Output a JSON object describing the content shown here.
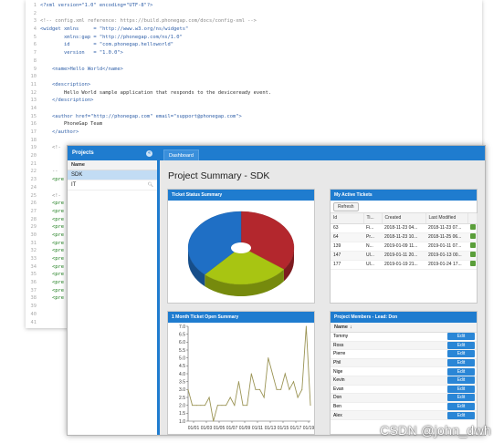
{
  "editor": {
    "lines": [
      {
        "n": "1",
        "t": "<?xml version=\"1.0\" encoding=\"UTF-8\"?>",
        "k": "tag"
      },
      {
        "n": "2",
        "t": "",
        "k": "code"
      },
      {
        "n": "3",
        "t": "<!-- config.xml reference: https://build.phonegap.com/docs/config-xml -->",
        "k": "com"
      },
      {
        "n": "4",
        "t": "<widget xmlns     = \"http://www.w3.org/ns/widgets\"",
        "k": "tag"
      },
      {
        "n": "5",
        "t": "        xmlns:gap = \"http://phonegap.com/ns/1.0\"",
        "k": "tag"
      },
      {
        "n": "6",
        "t": "        id        = \"com.phonegap.helloworld\"",
        "k": "tag"
      },
      {
        "n": "7",
        "t": "        version   = \"1.0.0\">",
        "k": "tag"
      },
      {
        "n": "8",
        "t": "",
        "k": "code"
      },
      {
        "n": "9",
        "t": "    <name>Hello World</name>",
        "k": "tag"
      },
      {
        "n": "10",
        "t": "",
        "k": "code"
      },
      {
        "n": "11",
        "t": "    <description>",
        "k": "tag"
      },
      {
        "n": "12",
        "t": "        Hello World sample application that responds to the deviceready event.",
        "k": "code"
      },
      {
        "n": "13",
        "t": "    </description>",
        "k": "tag"
      },
      {
        "n": "14",
        "t": "",
        "k": "code"
      },
      {
        "n": "15",
        "t": "    <author href=\"http://phonegap.com\" email=\"support@phonegap.com\">",
        "k": "tag"
      },
      {
        "n": "16",
        "t": "        PhoneGap Team",
        "k": "code"
      },
      {
        "n": "17",
        "t": "    </author>",
        "k": "tag"
      },
      {
        "n": "18",
        "t": "",
        "k": "code"
      },
      {
        "n": "19",
        "t": "    <!-",
        "k": "com"
      },
      {
        "n": "20",
        "t": "",
        "k": "code"
      },
      {
        "n": "21",
        "t": "",
        "k": "code"
      },
      {
        "n": "22",
        "t": "    --",
        "k": "com"
      },
      {
        "n": "23",
        "t": "    <pre",
        "k": "gt"
      },
      {
        "n": "24",
        "t": "",
        "k": "code"
      },
      {
        "n": "25",
        "t": "    <!-",
        "k": "com"
      },
      {
        "n": "26",
        "t": "    <pre",
        "k": "gt"
      },
      {
        "n": "27",
        "t": "    <pre",
        "k": "gt"
      },
      {
        "n": "28",
        "t": "    <pre",
        "k": "gt"
      },
      {
        "n": "29",
        "t": "    <pre",
        "k": "gt"
      },
      {
        "n": "30",
        "t": "    <pre",
        "k": "gt"
      },
      {
        "n": "31",
        "t": "    <pre",
        "k": "gt"
      },
      {
        "n": "32",
        "t": "    <pre",
        "k": "gt"
      },
      {
        "n": "33",
        "t": "    <pre",
        "k": "gt"
      },
      {
        "n": "34",
        "t": "    <pre",
        "k": "gt"
      },
      {
        "n": "35",
        "t": "    <pre",
        "k": "gt"
      },
      {
        "n": "36",
        "t": "    <pre",
        "k": "gt"
      },
      {
        "n": "37",
        "t": "    <pre",
        "k": "gt"
      },
      {
        "n": "38",
        "t": "    <pre",
        "k": "gt"
      },
      {
        "n": "39",
        "t": "",
        "k": "code"
      },
      {
        "n": "40",
        "t": "",
        "k": "code"
      },
      {
        "n": "41",
        "t": "",
        "k": "code"
      }
    ]
  },
  "projects": {
    "title": "Projects",
    "column": "Name",
    "items": [
      "SDK",
      "IT"
    ]
  },
  "tabs": [
    "Dashboard"
  ],
  "page_title": "Project Summary - SDK",
  "ticket_status": {
    "title": "Ticket Status Summary",
    "chart_data": {
      "type": "pie",
      "slices": [
        {
          "value": 35,
          "color": "#b3272d"
        },
        {
          "value": 27,
          "color": "#a8c512"
        },
        {
          "value": 38,
          "color": "#1f6fc5"
        }
      ]
    }
  },
  "my_tickets": {
    "title": "My Active Tickets",
    "refresh": "Refresh",
    "columns": [
      "Id",
      "Ti...",
      "Created",
      "Last Modified"
    ],
    "rows": [
      [
        "63",
        "Fi...",
        "2018-11-23 04...",
        "2018-11-23 07..."
      ],
      [
        "64",
        "Pr...",
        "2018-11-23 10...",
        "2018-11-25 06..."
      ],
      [
        "139",
        "N...",
        "2019-01-09 11...",
        "2019-01-11 07..."
      ],
      [
        "147",
        "Ul...",
        "2019-01-11 20...",
        "2019-01-13 00..."
      ],
      [
        "177",
        "Ul...",
        "2019-01-19 21...",
        "2019-01-24 17..."
      ]
    ]
  },
  "open_summary": {
    "title": "1 Month Ticket Open Summary",
    "chart_data": {
      "type": "line",
      "x_ticks": [
        "01/01",
        "01/03",
        "01/05",
        "01/07",
        "01/09",
        "01/11",
        "01/13",
        "01/15",
        "01/17",
        "01/19"
      ],
      "ylim": [
        1.0,
        7.0
      ],
      "y_ticks": [
        "7.0",
        "6.5",
        "6.0",
        "5.5",
        "5.0",
        "4.5",
        "4.0",
        "3.5",
        "3.0",
        "2.5",
        "2.0",
        "1.5",
        "1.0"
      ],
      "x": [
        0,
        1,
        2,
        3,
        4,
        5,
        6,
        7,
        8,
        9,
        10,
        11,
        12,
        13,
        14,
        15,
        16,
        17,
        18,
        19,
        20,
        21,
        22,
        23,
        24,
        25,
        26,
        27,
        28,
        29
      ],
      "values": [
        3.0,
        2.0,
        2.0,
        2.0,
        2.0,
        2.5,
        1.0,
        2.0,
        2.0,
        2.0,
        2.5,
        2.0,
        3.5,
        2.0,
        2.0,
        4.0,
        3.0,
        3.0,
        2.5,
        5.0,
        4.0,
        3.0,
        3.0,
        4.0,
        3.0,
        3.5,
        2.5,
        3.0,
        7.0,
        2.0
      ],
      "color": "#9b9455"
    }
  },
  "members": {
    "title": "Project Members - Lead: Don",
    "column": "Name",
    "sort_arrow": "↓",
    "edit_label": "Edit",
    "items": [
      "Tommy",
      "Ross",
      "Pierre",
      "Phil",
      "Nige",
      "Kevin",
      "Evan",
      "Don",
      "Ben",
      "Alex"
    ]
  },
  "watermark": "CSDN @john_dwh"
}
